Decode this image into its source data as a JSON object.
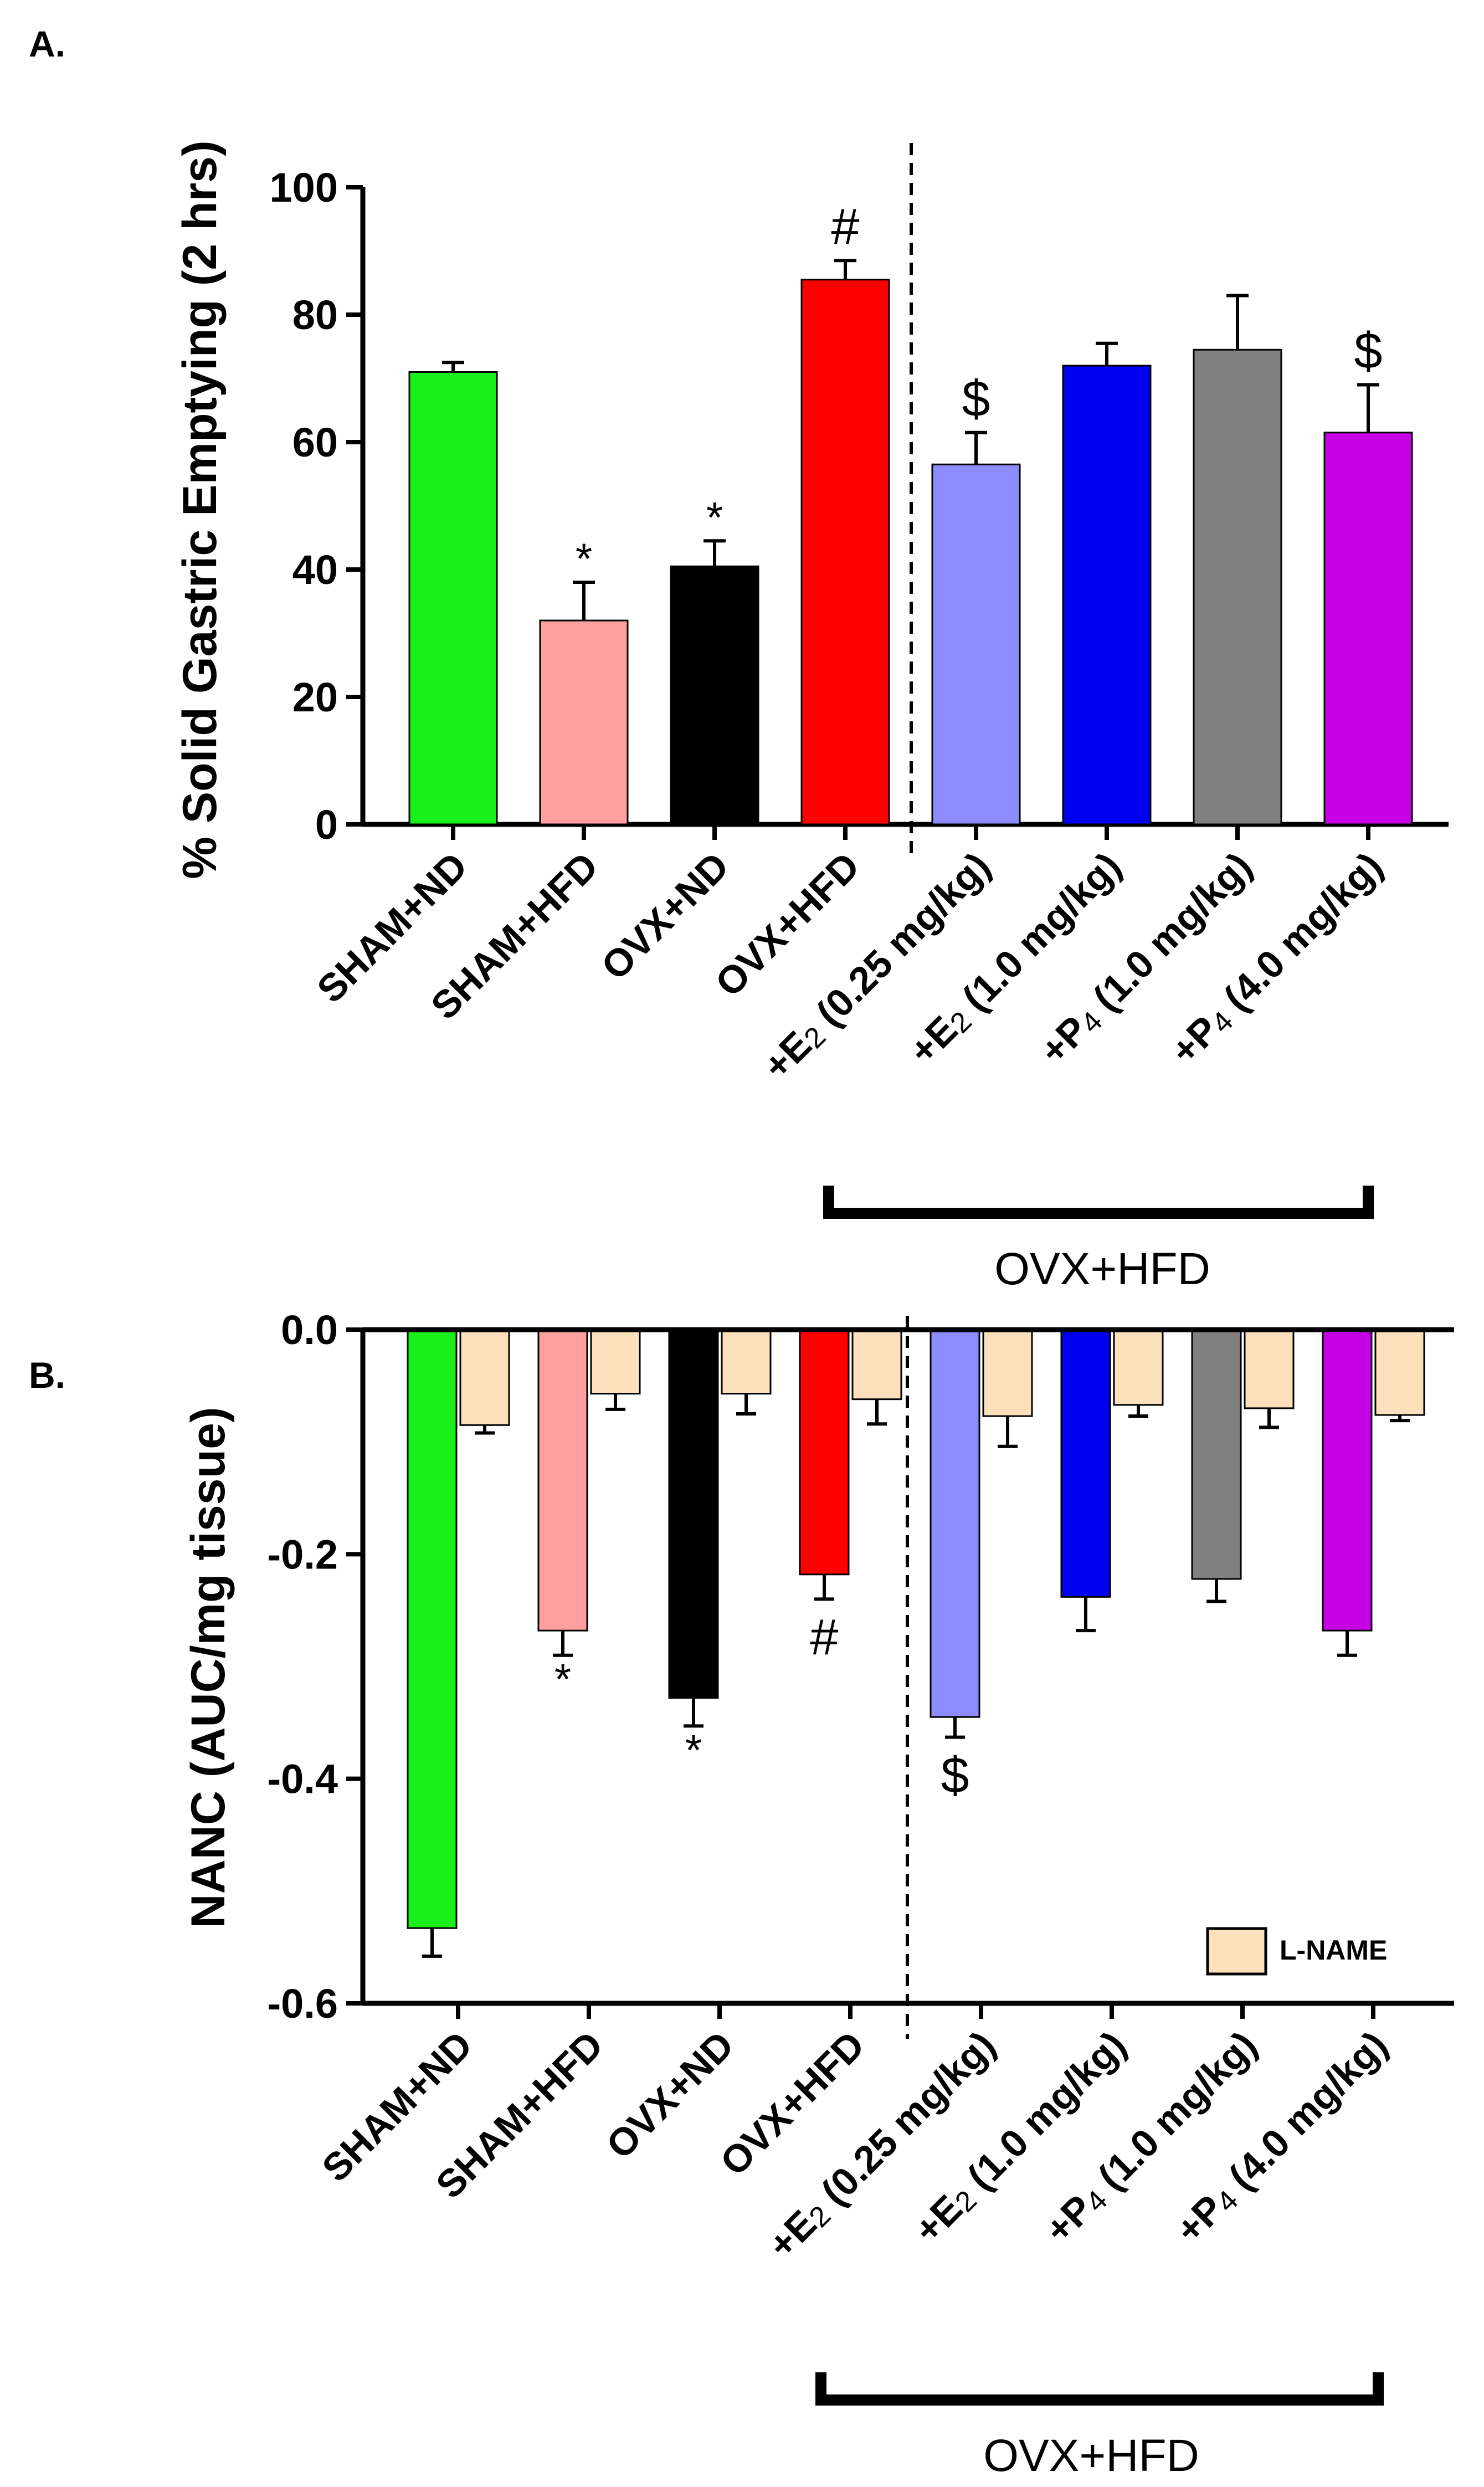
{
  "chart_data": [
    {
      "type": "bar",
      "panel": "A.",
      "ylabel": "% Solid Gastric Emptying (2 hrs)",
      "ylim": [
        0,
        100
      ],
      "yticks": [
        "0",
        "20",
        "40",
        "60",
        "80",
        "100"
      ],
      "yticks_values": [
        0,
        20,
        40,
        60,
        80,
        100
      ],
      "categories": [
        "SHAM+ND",
        "SHAM+HFD",
        "OVX+ND",
        "OVX+HFD",
        "+E2 (0.25 mg/kg)",
        "+E2 (1.0 mg/kg)",
        "+P4 (1.0 mg/kg)",
        "+P4 (4.0 mg/kg)"
      ],
      "values": [
        71,
        32,
        40.5,
        85.5,
        56.5,
        72,
        74.5,
        61.5
      ],
      "errors": [
        1.5,
        6,
        4,
        3,
        5,
        3.5,
        8.5,
        7.5
      ],
      "colors": [
        "#19f019",
        "#ff9f9f",
        "#000000",
        "#ff0000",
        "#8c8cff",
        "#0000f0",
        "#808080",
        "#c800e6"
      ],
      "annotations": [
        "",
        "*",
        "*",
        "#",
        "$",
        "",
        "",
        "$"
      ],
      "bracket_label": "OVX+HFD",
      "grid": false
    },
    {
      "type": "bar",
      "panel": "B.",
      "ylabel": "NANC (AUC/mg tissue)",
      "ylim": [
        -0.6,
        0.0
      ],
      "yticks": [
        "0.0",
        "-0.2",
        "-0.4",
        "-0.6"
      ],
      "yticks_values": [
        0.0,
        -0.2,
        -0.4,
        -0.6
      ],
      "categories": [
        "SHAM+ND",
        "SHAM+HFD",
        "OVX+ND",
        "OVX+HFD",
        "+E2 (0.25 mg/kg)",
        "+E2 (1.0 mg/kg)",
        "+P4 (1.0 mg/kg)",
        "+P4 (4.0 mg/kg)"
      ],
      "series": [
        {
          "values": [
            -0.533,
            -0.268,
            -0.328,
            -0.218,
            -0.345,
            -0.238,
            -0.222,
            -0.268
          ],
          "errors": [
            0.025,
            0.022,
            0.025,
            0.022,
            0.018,
            0.03,
            0.02,
            0.022
          ],
          "colors": [
            "#19f019",
            "#ff9f9f",
            "#000000",
            "#ff0000",
            "#8c8cff",
            "#0000f0",
            "#808080",
            "#c800e6"
          ]
        },
        {
          "name": "L-NAME",
          "values": [
            -0.085,
            -0.057,
            -0.057,
            -0.062,
            -0.077,
            -0.067,
            -0.07,
            -0.076
          ],
          "errors": [
            0.007,
            0.014,
            0.018,
            0.022,
            0.027,
            0.01,
            0.017,
            0.005
          ],
          "color": "#fce0bc"
        }
      ],
      "annotations": [
        "",
        "*",
        "*",
        "#",
        "$",
        "",
        "",
        ""
      ],
      "legend": {
        "position": "bottom-right",
        "entries": [
          "L-NAME"
        ]
      },
      "bracket_label": "OVX+HFD",
      "grid": false
    }
  ]
}
